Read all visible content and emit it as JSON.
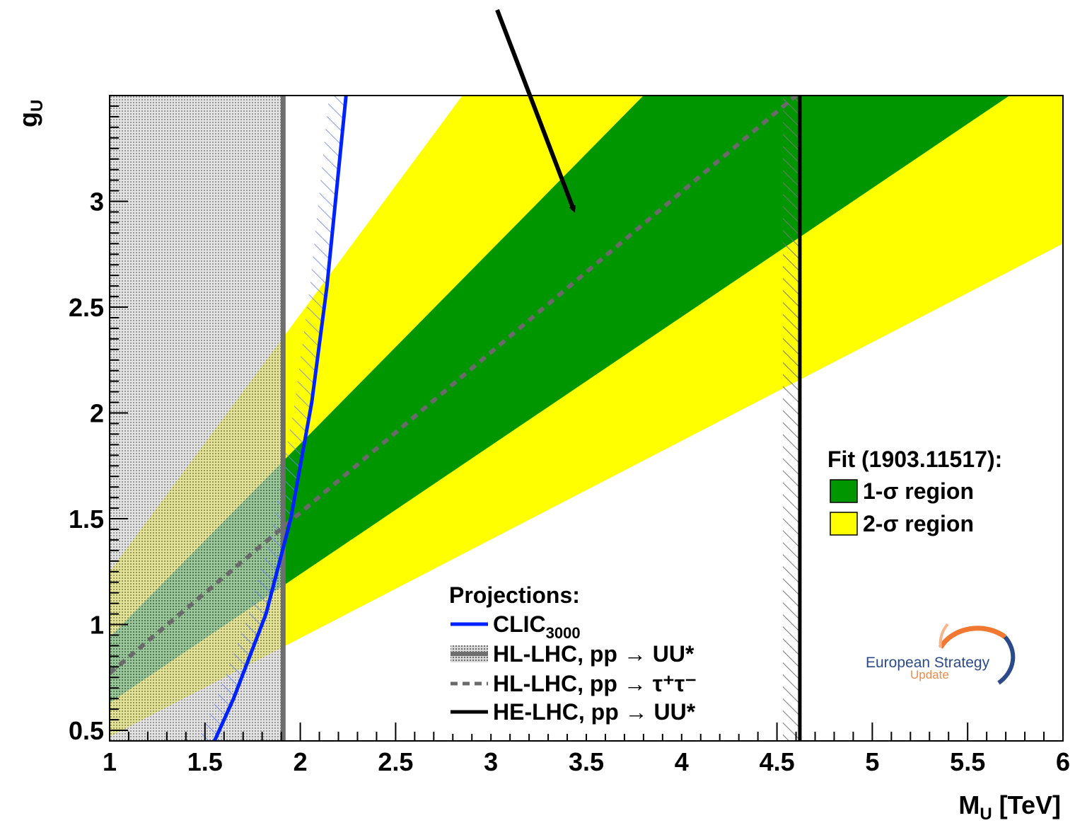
{
  "chart_data": {
    "type": "area",
    "xlabel": "M",
    "xlabel_sub": "U",
    "xlabel_unit": " [TeV]",
    "ylabel": "g",
    "ylabel_sub": "U",
    "xlim": [
      1,
      6
    ],
    "ylim": [
      0.45,
      3.5
    ],
    "x_ticks": [
      "1",
      "1.5",
      "2",
      "2.5",
      "3",
      "3.5",
      "4",
      "4.5",
      "5",
      "5.5",
      "6"
    ],
    "y_ticks": [
      "0.5",
      "1",
      "1.5",
      "2",
      "2.5",
      "3"
    ],
    "fit_bands": {
      "two_sigma": {
        "upper": [
          [
            1,
            1.25
          ],
          [
            2.85,
            3.5
          ]
        ],
        "lower": [
          [
            1,
            0.47
          ],
          [
            6,
            2.8
          ]
        ],
        "color": "#ffff00"
      },
      "one_sigma": {
        "upper": [
          [
            1,
            0.94
          ],
          [
            3.8,
            3.5
          ]
        ],
        "lower": [
          [
            1,
            0.63
          ],
          [
            5.72,
            3.5
          ]
        ],
        "color": "#009600"
      }
    },
    "hl_lhc_uu_excluded_below": 1.91,
    "he_lhc_uu_excluded_below": 4.62,
    "clic_3000": [
      [
        1.55,
        0.45
      ],
      [
        1.65,
        0.65
      ],
      [
        1.82,
        1.05
      ],
      [
        1.95,
        1.5
      ],
      [
        2.06,
        2.05
      ],
      [
        2.14,
        2.6
      ],
      [
        2.24,
        3.5
      ]
    ],
    "hl_lhc_tautau": [
      [
        1,
        0.77
      ],
      [
        4.6,
        3.5
      ]
    ],
    "legend_fit": {
      "title": "Fit (1903.11517):",
      "entries": [
        {
          "label": "1-σ region",
          "color": "#009600"
        },
        {
          "label": "2-σ region",
          "color": "#ffff00"
        }
      ],
      "position": "right"
    },
    "legend_projections": {
      "title": "Projections:",
      "entries": [
        {
          "label": "CLIC",
          "sub": "3000",
          "color": "#0022ff",
          "style": "solid-line"
        },
        {
          "label": "HL-LHC, pp → UU*",
          "color": "#777777",
          "style": "hatched-band"
        },
        {
          "label": "HL-LHC, pp → τ⁺τ⁻",
          "color": "#777777",
          "style": "dashed-line"
        },
        {
          "label": "HE-LHC, pp → UU*",
          "color": "#000000",
          "style": "solid-line"
        }
      ],
      "position": "bottom-center"
    },
    "annotation": "arrow pointing into 1-σ region"
  },
  "logo": {
    "line1": "European Strategy",
    "line2": "Update"
  }
}
